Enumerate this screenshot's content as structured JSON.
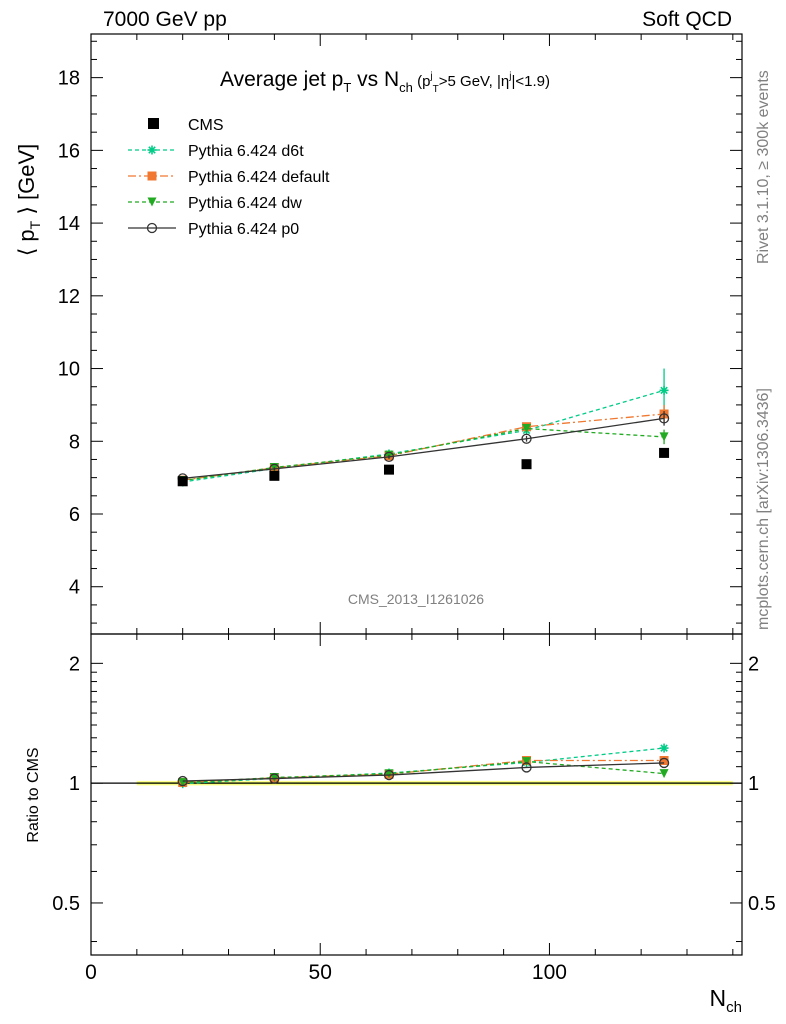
{
  "header": {
    "left": "7000 GeV pp",
    "right": "Soft QCD"
  },
  "side_labels": {
    "rivet": "Rivet 3.1.10, ≥ 300k events",
    "source": "mcplots.cern.ch [arXiv:1306.3436]"
  },
  "chart_data": [
    {
      "type": "scatter",
      "title_parts": {
        "main": "Average jet p",
        "sub1": "T",
        "mid": " vs N",
        "sub2": "ch",
        "cut": "(pⱼ >5 GeV, |ηʲ|<1.9)"
      },
      "cut_label": {
        "open": "(p",
        "sup1": "j",
        "sub1": "T",
        "mid": ">5 GeV, |η",
        "sup2": "j",
        "close": "|<1.9)"
      },
      "ylabel": {
        "open": "⟨ p",
        "sub": "T",
        "close": " ⟩ [GeV]"
      },
      "analysis_tag": "CMS_2013_I1261026",
      "xlim": [
        0,
        142
      ],
      "ylim": [
        2.7,
        19.2
      ],
      "yticks": [
        4,
        6,
        8,
        10,
        12,
        14,
        16,
        18
      ],
      "ytick_labels": [
        "4",
        "6",
        "8",
        "10",
        "12",
        "14",
        "16",
        "18"
      ],
      "legend_position": "top-left",
      "x": [
        20,
        40,
        65,
        95,
        125
      ],
      "data_series": {
        "name": "CMS",
        "values": [
          6.9,
          7.05,
          7.22,
          7.37,
          7.68
        ],
        "x_errors": [
          10,
          10,
          15,
          15,
          15
        ],
        "color": "#000000"
      },
      "series": [
        {
          "name": "Pythia 6.424 d6t",
          "values": [
            6.88,
            7.25,
            7.65,
            8.3,
            9.4
          ],
          "errors": [
            0.04,
            0.04,
            0.05,
            0.08,
            0.6
          ],
          "color": "#00cc88",
          "marker": "star",
          "dash": "4 3"
        },
        {
          "name": "Pythia 6.424 default",
          "values": [
            6.93,
            7.27,
            7.6,
            8.4,
            8.75
          ],
          "errors": [
            0.04,
            0.04,
            0.05,
            0.08,
            0.25
          ],
          "color": "#f07830",
          "marker": "square",
          "dash": "8 3 2 3"
        },
        {
          "name": "Pythia 6.424 dw",
          "values": [
            6.92,
            7.28,
            7.62,
            8.35,
            8.12
          ],
          "errors": [
            0.04,
            0.04,
            0.05,
            0.08,
            0.2
          ],
          "color": "#22aa22",
          "marker": "triangle-down",
          "dash": "4 3"
        },
        {
          "name": "Pythia 6.424 p0",
          "values": [
            6.98,
            7.24,
            7.57,
            8.07,
            8.63
          ],
          "errors": [
            0.04,
            0.04,
            0.05,
            0.08,
            0.2
          ],
          "color": "#333333",
          "marker": "circle-open",
          "dash": ""
        }
      ]
    },
    {
      "type": "line",
      "ylabel": "Ratio to CMS",
      "xlabel": {
        "main": "N",
        "sub": "ch"
      },
      "xlim": [
        0,
        142
      ],
      "ylim": [
        0.37,
        2.37
      ],
      "y_scale": "log",
      "xticks": [
        0,
        50,
        100
      ],
      "xtick_labels": [
        "0",
        "50",
        "100"
      ],
      "yticks": [
        0.5,
        1,
        2
      ],
      "ytick_labels": [
        "0.5",
        "1",
        "2"
      ],
      "x": [
        20,
        40,
        65,
        95,
        125
      ],
      "reference_band": {
        "x_range": [
          10,
          140
        ],
        "value": 1,
        "color": "#ffff66"
      },
      "series": [
        {
          "name": "Pythia 6.424 d6t",
          "values": [
            0.997,
            1.028,
            1.06,
            1.127,
            1.225
          ],
          "color": "#00cc88",
          "marker": "star",
          "dash": "4 3"
        },
        {
          "name": "Pythia 6.424 default",
          "values": [
            1.004,
            1.031,
            1.053,
            1.14,
            1.14
          ],
          "color": "#f07830",
          "marker": "square",
          "dash": "8 3 2 3"
        },
        {
          "name": "Pythia 6.424 dw",
          "values": [
            1.003,
            1.033,
            1.056,
            1.133,
            1.057
          ],
          "color": "#22aa22",
          "marker": "triangle-down",
          "dash": "4 3"
        },
        {
          "name": "Pythia 6.424 p0",
          "values": [
            1.012,
            1.027,
            1.048,
            1.095,
            1.124
          ],
          "color": "#333333",
          "marker": "circle-open",
          "dash": ""
        }
      ]
    }
  ]
}
